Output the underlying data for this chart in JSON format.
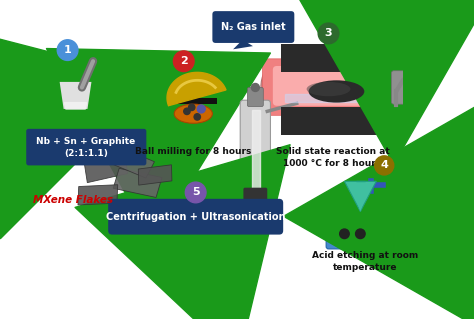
{
  "bg_color": "#ffffff",
  "arrow_color": "#1a9a1a",
  "dark_bg": "#1a3a6e",
  "step_colors": {
    "1": "#4a90d9",
    "2": "#cc2222",
    "3": "#2d6a2d",
    "4": "#8b7000",
    "5": "#7755aa"
  },
  "n2_label": "N₂ Gas inlet",
  "mxene_label": "MXene Flakes",
  "mxene_color": "#cc0000",
  "label1": "Nb + Sn + Graphite\n(2:1:1.1)",
  "label2": "Ball milling for 8 hours",
  "label3": "Solid state reaction at\n1000 °C for 8 hours",
  "label4": "Acid etching at room\ntemperature",
  "label5": "Centrifugation + Ultrasonication"
}
